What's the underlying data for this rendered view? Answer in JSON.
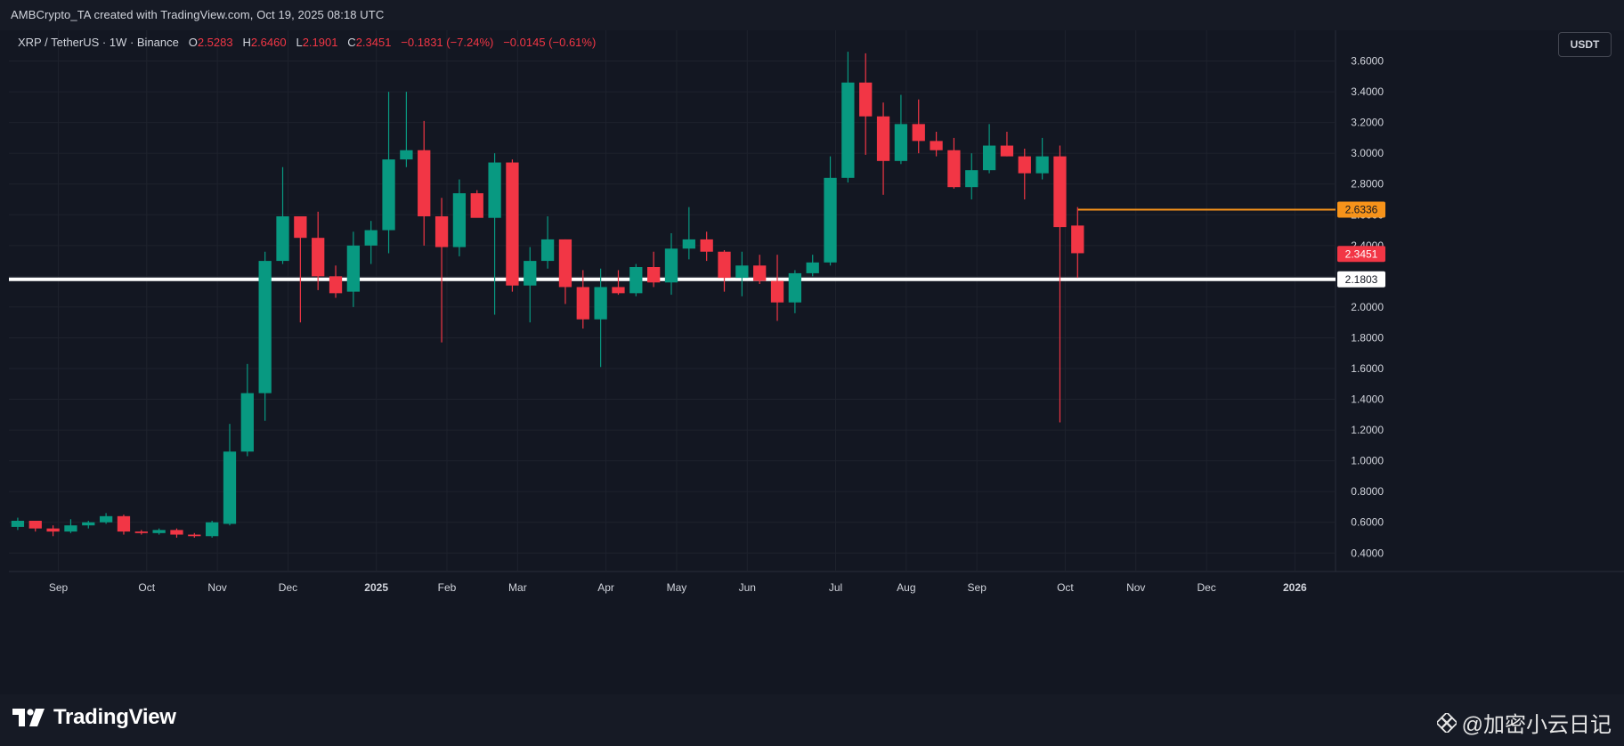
{
  "header": {
    "credit": "AMBCrypto_TA created with TradingView.com, Oct 19, 2025 08:18 UTC"
  },
  "legend": {
    "symbol": "XRP / TetherUS · 1W · Binance",
    "o_label": "O",
    "o_value": "2.5283",
    "h_label": "H",
    "h_value": "2.6460",
    "l_label": "L",
    "l_value": "2.1901",
    "c_label": "C",
    "c_value": "2.3451",
    "change": "−0.1831 (−7.24%)",
    "change2": "−0.0145 (−0.61%)"
  },
  "currency_button": "USDT",
  "footer": {
    "brand": "TradingView",
    "watermark": "@加密小云日记"
  },
  "colors": {
    "background": "#131722",
    "up": "#089981",
    "down": "#f23645",
    "grid": "#1e222d",
    "resistance": "#f7931a",
    "support": "#ffffff"
  },
  "chart_data": {
    "type": "candlestick",
    "title": "",
    "ylabel": "",
    "xlabel": "",
    "ylim": [
      0.28,
      3.8
    ],
    "y_ticks": [
      "3.6000",
      "3.4000",
      "3.2000",
      "3.0000",
      "2.8000",
      "2.6000",
      "2.4000",
      "2.2000",
      "2.0000",
      "1.8000",
      "1.6000",
      "1.4000",
      "1.2000",
      "1.0000",
      "0.8000",
      "0.6000",
      "0.4000"
    ],
    "x_ticks": [
      "Sep",
      "Oct",
      "Nov",
      "Dec",
      "2025",
      "Feb",
      "Mar",
      "Apr",
      "May",
      "Jun",
      "Jul",
      "Aug",
      "Sep",
      "Oct",
      "Nov",
      "Dec",
      "2026"
    ],
    "x_tick_positions": [
      2.3,
      7.3,
      11.3,
      15.3,
      20.3,
      24.3,
      28.3,
      33.3,
      37.3,
      41.3,
      46.3,
      50.3,
      54.3,
      59.3,
      63.3,
      67.3,
      72.3
    ],
    "x_range": [
      -0.5,
      74.3
    ],
    "candles": [
      {
        "o": 0.57,
        "h": 0.63,
        "l": 0.55,
        "c": 0.61
      },
      {
        "o": 0.61,
        "h": 0.61,
        "l": 0.54,
        "c": 0.56
      },
      {
        "o": 0.56,
        "h": 0.58,
        "l": 0.51,
        "c": 0.54
      },
      {
        "o": 0.54,
        "h": 0.62,
        "l": 0.53,
        "c": 0.58
      },
      {
        "o": 0.58,
        "h": 0.61,
        "l": 0.56,
        "c": 0.6
      },
      {
        "o": 0.6,
        "h": 0.66,
        "l": 0.59,
        "c": 0.64
      },
      {
        "o": 0.64,
        "h": 0.65,
        "l": 0.52,
        "c": 0.54
      },
      {
        "o": 0.54,
        "h": 0.55,
        "l": 0.52,
        "c": 0.53
      },
      {
        "o": 0.53,
        "h": 0.56,
        "l": 0.52,
        "c": 0.55
      },
      {
        "o": 0.55,
        "h": 0.56,
        "l": 0.5,
        "c": 0.52
      },
      {
        "o": 0.52,
        "h": 0.53,
        "l": 0.5,
        "c": 0.51
      },
      {
        "o": 0.51,
        "h": 0.61,
        "l": 0.5,
        "c": 0.6
      },
      {
        "o": 0.59,
        "h": 1.24,
        "l": 0.58,
        "c": 1.06
      },
      {
        "o": 1.06,
        "h": 1.63,
        "l": 1.03,
        "c": 1.44
      },
      {
        "o": 1.44,
        "h": 2.36,
        "l": 1.26,
        "c": 2.3
      },
      {
        "o": 2.3,
        "h": 2.91,
        "l": 2.28,
        "c": 2.59
      },
      {
        "o": 2.59,
        "h": 2.59,
        "l": 1.9,
        "c": 2.45
      },
      {
        "o": 2.45,
        "h": 2.62,
        "l": 2.11,
        "c": 2.2
      },
      {
        "o": 2.2,
        "h": 2.27,
        "l": 2.06,
        "c": 2.09
      },
      {
        "o": 2.1,
        "h": 2.49,
        "l": 2.0,
        "c": 2.4
      },
      {
        "o": 2.4,
        "h": 2.56,
        "l": 2.28,
        "c": 2.5
      },
      {
        "o": 2.5,
        "h": 3.4,
        "l": 2.35,
        "c": 2.96
      },
      {
        "o": 2.96,
        "h": 3.4,
        "l": 2.91,
        "c": 3.02
      },
      {
        "o": 3.02,
        "h": 3.21,
        "l": 2.4,
        "c": 2.59
      },
      {
        "o": 2.59,
        "h": 2.71,
        "l": 1.77,
        "c": 2.39
      },
      {
        "o": 2.39,
        "h": 2.83,
        "l": 2.33,
        "c": 2.74
      },
      {
        "o": 2.74,
        "h": 2.76,
        "l": 2.6,
        "c": 2.58
      },
      {
        "o": 2.58,
        "h": 3.0,
        "l": 1.95,
        "c": 2.94
      },
      {
        "o": 2.94,
        "h": 2.96,
        "l": 2.1,
        "c": 2.14
      },
      {
        "o": 2.14,
        "h": 2.39,
        "l": 1.9,
        "c": 2.3
      },
      {
        "o": 2.3,
        "h": 2.59,
        "l": 2.25,
        "c": 2.44
      },
      {
        "o": 2.44,
        "h": 2.44,
        "l": 2.02,
        "c": 2.13
      },
      {
        "o": 2.13,
        "h": 2.24,
        "l": 1.86,
        "c": 1.92
      },
      {
        "o": 1.92,
        "h": 2.25,
        "l": 1.61,
        "c": 2.13
      },
      {
        "o": 2.13,
        "h": 2.24,
        "l": 2.08,
        "c": 2.09
      },
      {
        "o": 2.09,
        "h": 2.28,
        "l": 2.07,
        "c": 2.26
      },
      {
        "o": 2.26,
        "h": 2.36,
        "l": 2.13,
        "c": 2.16
      },
      {
        "o": 2.16,
        "h": 2.48,
        "l": 2.08,
        "c": 2.38
      },
      {
        "o": 2.38,
        "h": 2.65,
        "l": 2.31,
        "c": 2.44
      },
      {
        "o": 2.44,
        "h": 2.49,
        "l": 2.3,
        "c": 2.36
      },
      {
        "o": 2.36,
        "h": 2.37,
        "l": 2.1,
        "c": 2.19
      },
      {
        "o": 2.19,
        "h": 2.36,
        "l": 2.07,
        "c": 2.27
      },
      {
        "o": 2.27,
        "h": 2.34,
        "l": 2.15,
        "c": 2.17
      },
      {
        "o": 2.17,
        "h": 2.34,
        "l": 1.91,
        "c": 2.03
      },
      {
        "o": 2.03,
        "h": 2.24,
        "l": 1.96,
        "c": 2.22
      },
      {
        "o": 2.22,
        "h": 2.34,
        "l": 2.2,
        "c": 2.29
      },
      {
        "o": 2.29,
        "h": 2.98,
        "l": 2.27,
        "c": 2.84
      },
      {
        "o": 2.84,
        "h": 3.66,
        "l": 2.81,
        "c": 3.46
      },
      {
        "o": 3.46,
        "h": 3.65,
        "l": 2.99,
        "c": 3.24
      },
      {
        "o": 3.24,
        "h": 3.33,
        "l": 2.73,
        "c": 2.95
      },
      {
        "o": 2.95,
        "h": 3.38,
        "l": 2.93,
        "c": 3.19
      },
      {
        "o": 3.19,
        "h": 3.35,
        "l": 3.0,
        "c": 3.08
      },
      {
        "o": 3.08,
        "h": 3.14,
        "l": 2.98,
        "c": 3.02
      },
      {
        "o": 3.02,
        "h": 3.1,
        "l": 2.77,
        "c": 2.78
      },
      {
        "o": 2.78,
        "h": 3.0,
        "l": 2.7,
        "c": 2.89
      },
      {
        "o": 2.89,
        "h": 3.19,
        "l": 2.87,
        "c": 3.05
      },
      {
        "o": 3.05,
        "h": 3.14,
        "l": 2.98,
        "c": 2.98
      },
      {
        "o": 2.98,
        "h": 3.03,
        "l": 2.7,
        "c": 2.87
      },
      {
        "o": 2.87,
        "h": 3.1,
        "l": 2.83,
        "c": 2.98
      },
      {
        "o": 2.98,
        "h": 3.05,
        "l": 1.25,
        "c": 2.52
      },
      {
        "o": 2.53,
        "h": 2.65,
        "l": 2.19,
        "c": 2.35
      }
    ],
    "annotations": [
      {
        "label": "2.6336",
        "value": 2.6336,
        "kind": "resistance",
        "x_start": 60
      },
      {
        "label": "2.3451",
        "value": 2.3451,
        "kind": "last_price"
      },
      {
        "label": "2.1803",
        "value": 2.1803,
        "kind": "support"
      }
    ]
  }
}
